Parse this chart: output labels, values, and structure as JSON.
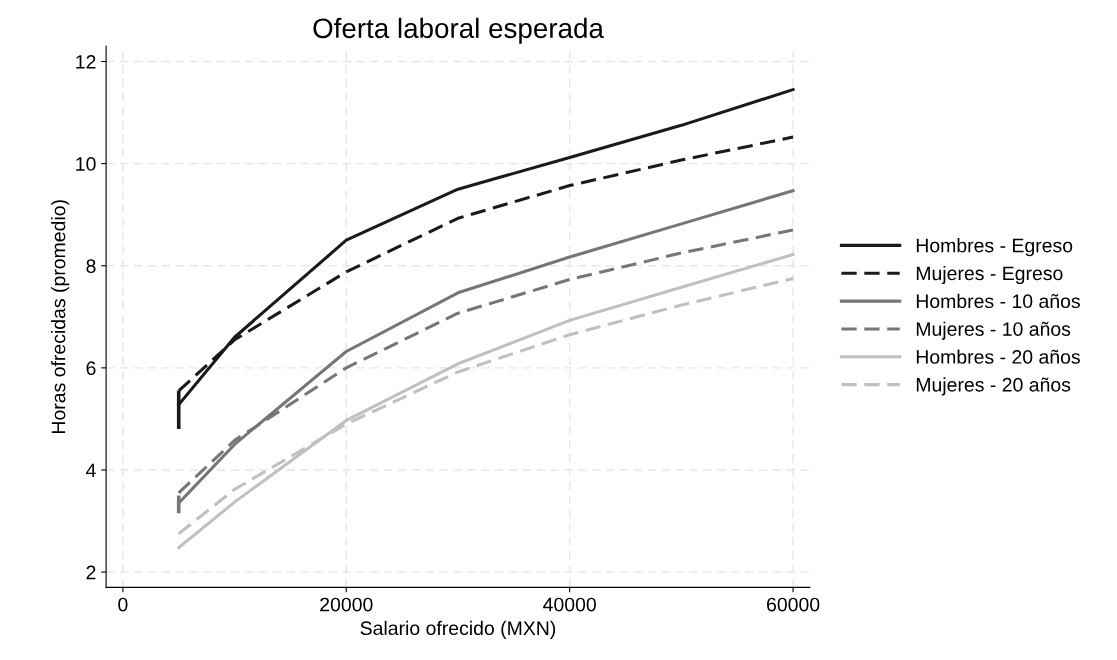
{
  "chart_data": {
    "type": "line",
    "title": "Oferta laboral esperada",
    "xlabel": "Salario ofrecido (MXN)",
    "ylabel": "Horas ofrecidas (promedio)",
    "x": [
      5000,
      10000,
      20000,
      30000,
      40000,
      50000,
      60000
    ],
    "xlim": [
      -1500,
      61500
    ],
    "xticks": [
      0,
      20000,
      40000,
      60000
    ],
    "ylim": [
      1.7,
      12.3
    ],
    "yticks": [
      2,
      4,
      6,
      8,
      10,
      12
    ],
    "grid": true,
    "legend": "right",
    "marker": "none",
    "series": [
      {
        "name": "Hombres - Egreso",
        "color": "#1a1a1a",
        "line_style": "solid",
        "values": [
          5.28,
          6.6,
          8.5,
          9.5,
          10.12,
          10.75,
          11.45
        ],
        "errors": [
          [
            4.8,
            5.55
          ],
          null,
          null,
          null,
          null,
          null,
          null
        ]
      },
      {
        "name": "Mujeres - Egreso",
        "color": "#1a1a1a",
        "line_style": "dashed",
        "values": [
          5.55,
          6.55,
          7.88,
          8.93,
          9.57,
          10.07,
          10.52
        ]
      },
      {
        "name": "Hombres - 10 años",
        "color": "#767676",
        "line_style": "solid",
        "values": [
          3.35,
          4.5,
          6.32,
          7.47,
          8.17,
          8.82,
          9.47
        ],
        "errors": [
          [
            3.15,
            3.5
          ],
          null,
          null,
          null,
          null,
          null,
          null
        ]
      },
      {
        "name": "Mujeres - 10 años",
        "color": "#767676",
        "line_style": "dashed",
        "values": [
          3.55,
          4.58,
          6.0,
          7.07,
          7.73,
          8.25,
          8.7
        ]
      },
      {
        "name": "Hombres - 20 años",
        "color": "#c0c0c0",
        "line_style": "solid",
        "values": [
          2.48,
          3.37,
          4.97,
          6.08,
          6.93,
          7.58,
          8.22
        ]
      },
      {
        "name": "Mujeres - 20 años",
        "color": "#c0c0c0",
        "line_style": "dashed",
        "values": [
          2.75,
          3.62,
          4.9,
          5.92,
          6.65,
          7.23,
          7.75
        ]
      }
    ]
  }
}
